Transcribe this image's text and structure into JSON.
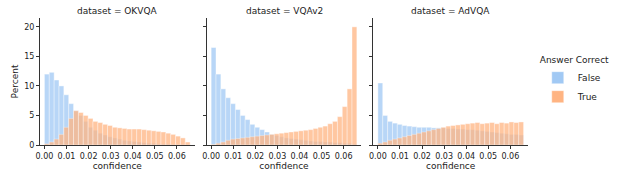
{
  "chart_data": [
    {
      "type": "histogram",
      "title": "dataset = OKVQA",
      "xlabel": "confidence",
      "ylabel": "Percent",
      "bins": [
        0,
        0.0022,
        0.0044,
        0.0066,
        0.0088,
        0.011,
        0.0132,
        0.0154,
        0.0176,
        0.0198,
        0.022,
        0.0242,
        0.0264,
        0.0286,
        0.0308,
        0.033,
        0.0352,
        0.0374,
        0.0396,
        0.0418,
        0.044,
        0.0462,
        0.0484,
        0.0506,
        0.0528,
        0.055,
        0.0572,
        0.0594,
        0.0616,
        0.0638,
        0.066
      ],
      "series": [
        {
          "name": "False",
          "color": "#a1c9f4",
          "values": [
            12,
            12.3,
            11,
            10,
            8.5,
            7,
            5.8,
            5,
            4,
            3,
            2.5,
            2,
            1.7,
            1.4,
            1.2,
            1,
            0.8,
            0.7,
            0.6,
            0.5,
            0.4,
            0.3,
            0.3,
            0.2,
            0.2,
            0.2,
            0.1,
            0.1,
            0.1,
            0.1
          ]
        },
        {
          "name": "True",
          "color": "#ffb482",
          "values": [
            0.2,
            0.5,
            1,
            1.8,
            3,
            4.5,
            5.8,
            5.5,
            5,
            4.5,
            4,
            3.8,
            3.5,
            3.3,
            3,
            2.9,
            2.8,
            2.7,
            2.7,
            2.7,
            2.6,
            2.5,
            2.4,
            2.3,
            2.2,
            2,
            1.8,
            1.5,
            1.2,
            0.5
          ]
        }
      ],
      "xlim": [
        -0.002,
        0.068
      ],
      "xticks": [
        {
          "value": 0,
          "label": "0.00"
        },
        {
          "value": 0.01,
          "label": "0.01"
        },
        {
          "value": 0.02,
          "label": "0.02"
        },
        {
          "value": 0.03,
          "label": "0.03"
        },
        {
          "value": 0.04,
          "label": "0.04"
        },
        {
          "value": 0.05,
          "label": "0.05"
        },
        {
          "value": 0.06,
          "label": "0.06"
        }
      ],
      "ylim": [
        0,
        21.5
      ],
      "yticks": [
        0,
        5,
        10,
        15,
        20
      ],
      "grid": false
    },
    {
      "type": "histogram",
      "title": "dataset = VQAv2",
      "xlabel": "confidence",
      "tick_labels": "x",
      "bins": [
        0,
        0.0022,
        0.0044,
        0.0066,
        0.0088,
        0.011,
        0.0132,
        0.0154,
        0.0176,
        0.0198,
        0.022,
        0.0242,
        0.0264,
        0.0286,
        0.0308,
        0.033,
        0.0352,
        0.0374,
        0.0396,
        0.0418,
        0.044,
        0.0462,
        0.0484,
        0.0506,
        0.0528,
        0.055,
        0.0572,
        0.0594,
        0.0616,
        0.0638,
        0.066
      ],
      "series": [
        {
          "name": "False",
          "color": "#a1c9f4",
          "values": [
            16.5,
            12,
            9.5,
            8,
            7,
            6,
            5,
            4.3,
            3.5,
            3,
            2.6,
            2.2,
            1.8,
            1.6,
            1.4,
            1.2,
            1.1,
            1,
            0.9,
            0.8,
            0.7,
            0.6,
            0.6,
            0.5,
            0.5,
            0.4,
            0.4,
            0.3,
            0.3,
            0.2
          ]
        },
        {
          "name": "True",
          "color": "#ffb482",
          "values": [
            0.1,
            0.3,
            0.5,
            0.8,
            1,
            1.1,
            1.2,
            1.3,
            1.4,
            1.5,
            1.6,
            1.7,
            1.8,
            1.9,
            2,
            2.1,
            2.2,
            2.3,
            2.4,
            2.5,
            2.6,
            2.8,
            3,
            3.2,
            3.6,
            4,
            4.8,
            6.5,
            9.5,
            20
          ]
        }
      ],
      "xlim": [
        -0.002,
        0.068
      ],
      "xticks": [
        {
          "value": 0,
          "label": "0.00"
        },
        {
          "value": 0.01,
          "label": "0.01"
        },
        {
          "value": 0.02,
          "label": "0.02"
        },
        {
          "value": 0.03,
          "label": "0.03"
        },
        {
          "value": 0.04,
          "label": "0.04"
        },
        {
          "value": 0.05,
          "label": "0.05"
        },
        {
          "value": 0.06,
          "label": "0.06"
        }
      ],
      "ylim": [
        0,
        21.5
      ],
      "yticks": [
        0,
        5,
        10,
        15,
        20
      ],
      "grid": false
    },
    {
      "type": "histogram",
      "title": "dataset = AdVQA",
      "xlabel": "confidence",
      "tick_labels": "x",
      "legend": "right",
      "legend_title": "Answer Correct",
      "bins": [
        0,
        0.0022,
        0.0044,
        0.0066,
        0.0088,
        0.011,
        0.0132,
        0.0154,
        0.0176,
        0.0198,
        0.022,
        0.0242,
        0.0264,
        0.0286,
        0.0308,
        0.033,
        0.0352,
        0.0374,
        0.0396,
        0.0418,
        0.044,
        0.0462,
        0.0484,
        0.0506,
        0.0528,
        0.055,
        0.0572,
        0.0594,
        0.0616,
        0.0638,
        0.066
      ],
      "series": [
        {
          "name": "False",
          "color": "#a1c9f4",
          "values": [
            10.5,
            5,
            4,
            3.7,
            3.5,
            3.3,
            3.2,
            3.1,
            3,
            3,
            3,
            2.9,
            2.9,
            2.9,
            2.8,
            2.8,
            2.7,
            2.7,
            2.6,
            2.6,
            2.5,
            2.4,
            2.3,
            2.2,
            2.1,
            2,
            1.9,
            1.8,
            1.8,
            1.7
          ]
        },
        {
          "name": "True",
          "color": "#ffb482",
          "values": [
            0.3,
            0.5,
            0.8,
            1,
            1.2,
            1.4,
            1.6,
            1.8,
            2,
            2.2,
            2.4,
            2.6,
            2.8,
            3,
            3.2,
            3.3,
            3.4,
            3.5,
            3.6,
            3.7,
            3.8,
            3.6,
            3.7,
            3.8,
            3.6,
            3.8,
            3.7,
            3.9,
            3.8,
            3.9
          ]
        }
      ],
      "xlim": [
        -0.002,
        0.068
      ],
      "xticks": [
        {
          "value": 0,
          "label": "0.00"
        },
        {
          "value": 0.01,
          "label": "0.01"
        },
        {
          "value": 0.02,
          "label": "0.02"
        },
        {
          "value": 0.03,
          "label": "0.03"
        },
        {
          "value": 0.04,
          "label": "0.04"
        },
        {
          "value": 0.05,
          "label": "0.05"
        },
        {
          "value": 0.06,
          "label": "0.06"
        }
      ],
      "ylim": [
        0,
        21.5
      ],
      "yticks": [
        0,
        5,
        10,
        15,
        20
      ],
      "grid": false
    }
  ]
}
